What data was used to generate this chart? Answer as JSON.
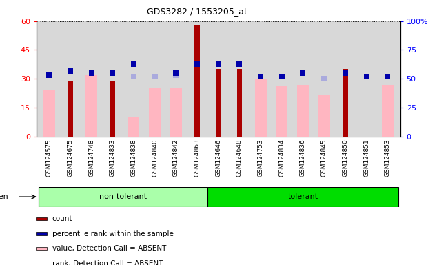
{
  "title": "GDS3282 / 1553205_at",
  "samples": [
    "GSM124575",
    "GSM124675",
    "GSM124748",
    "GSM124833",
    "GSM124838",
    "GSM124840",
    "GSM124842",
    "GSM124863",
    "GSM124646",
    "GSM124648",
    "GSM124753",
    "GSM124834",
    "GSM124836",
    "GSM124845",
    "GSM124850",
    "GSM124851",
    "GSM124853"
  ],
  "n_nontolerant": 8,
  "count": [
    null,
    29,
    null,
    29,
    null,
    null,
    null,
    58,
    35,
    35,
    null,
    null,
    null,
    null,
    35,
    null,
    null
  ],
  "percentile_rank": [
    53,
    57,
    55,
    55,
    63,
    null,
    55,
    63,
    63,
    63,
    52,
    52,
    55,
    null,
    55,
    52,
    52
  ],
  "value_absent": [
    24,
    null,
    32,
    null,
    10,
    25,
    25,
    null,
    null,
    null,
    30,
    26,
    27,
    22,
    null,
    null,
    27
  ],
  "rank_absent": [
    53,
    null,
    55,
    null,
    52,
    52,
    53,
    null,
    null,
    null,
    52,
    52,
    55,
    50,
    null,
    null,
    52
  ],
  "left_ylim": [
    0,
    60
  ],
  "right_ylim": [
    0,
    100
  ],
  "left_yticks": [
    0,
    15,
    30,
    45,
    60
  ],
  "right_yticks": [
    0,
    25,
    50,
    75,
    100
  ],
  "right_yticklabels": [
    "0",
    "25",
    "50",
    "75",
    "100%"
  ],
  "colors": {
    "count": "#aa0000",
    "percentile_rank": "#0000aa",
    "value_absent": "#ffb6c1",
    "rank_absent": "#aaaadd",
    "non_tolerant_bg": "#aaffaa",
    "tolerant_bg": "#00dd00",
    "plot_bg": "#d8d8d8",
    "tick_label_bg": "#cccccc"
  },
  "count_bar_width": 0.25,
  "value_bar_width": 0.55,
  "marker_size": 6,
  "legend_items": [
    {
      "label": "count",
      "color": "#aa0000"
    },
    {
      "label": "percentile rank within the sample",
      "color": "#0000aa"
    },
    {
      "label": "value, Detection Call = ABSENT",
      "color": "#ffb6c1"
    },
    {
      "label": "rank, Detection Call = ABSENT",
      "color": "#aaaadd"
    }
  ]
}
